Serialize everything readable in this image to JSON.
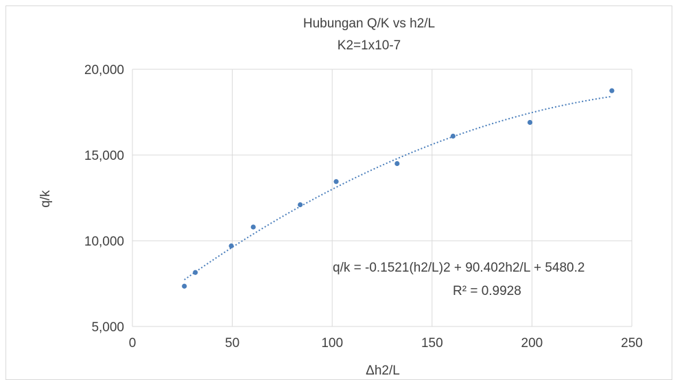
{
  "chart_data": {
    "type": "scatter",
    "title": "Hubungan Q/K vs h2/L",
    "subtitle": "K2=1x10-7",
    "xlabel": "Δh2/L",
    "ylabel": "q/k",
    "xlim": [
      0,
      250
    ],
    "ylim": [
      5000,
      20000
    ],
    "x_ticks": [
      0,
      50,
      100,
      150,
      200,
      250
    ],
    "y_ticks": [
      5000,
      10000,
      15000,
      20000
    ],
    "x_tick_labels": [
      "0",
      "50",
      "100",
      "150",
      "200",
      "250"
    ],
    "y_tick_labels": [
      "5,000",
      "10,000",
      "15,000",
      "20,000"
    ],
    "grid": "vertical and horizontal major gridlines",
    "marker_color": "#4a7ebb",
    "series": [
      {
        "x": [
          26,
          31.5,
          49.5,
          60.5,
          84,
          102,
          132.5,
          160.5,
          199,
          240
        ],
        "y": [
          7350,
          8150,
          9700,
          10800,
          12100,
          13450,
          14500,
          16100,
          16900,
          18750
        ]
      }
    ],
    "trendline": {
      "kind": "polynomial-2",
      "coefficients": {
        "a": -0.1521,
        "b": 90.402,
        "c": 5480.2
      },
      "x_range": [
        26,
        240
      ],
      "style": "dotted",
      "color": "#4a7ebb"
    },
    "annotations": {
      "equation": "q/k = -0.1521(h2/L)2 + 90.402h2/L + 5480.2",
      "r_squared": "R² = 0.9928"
    }
  }
}
